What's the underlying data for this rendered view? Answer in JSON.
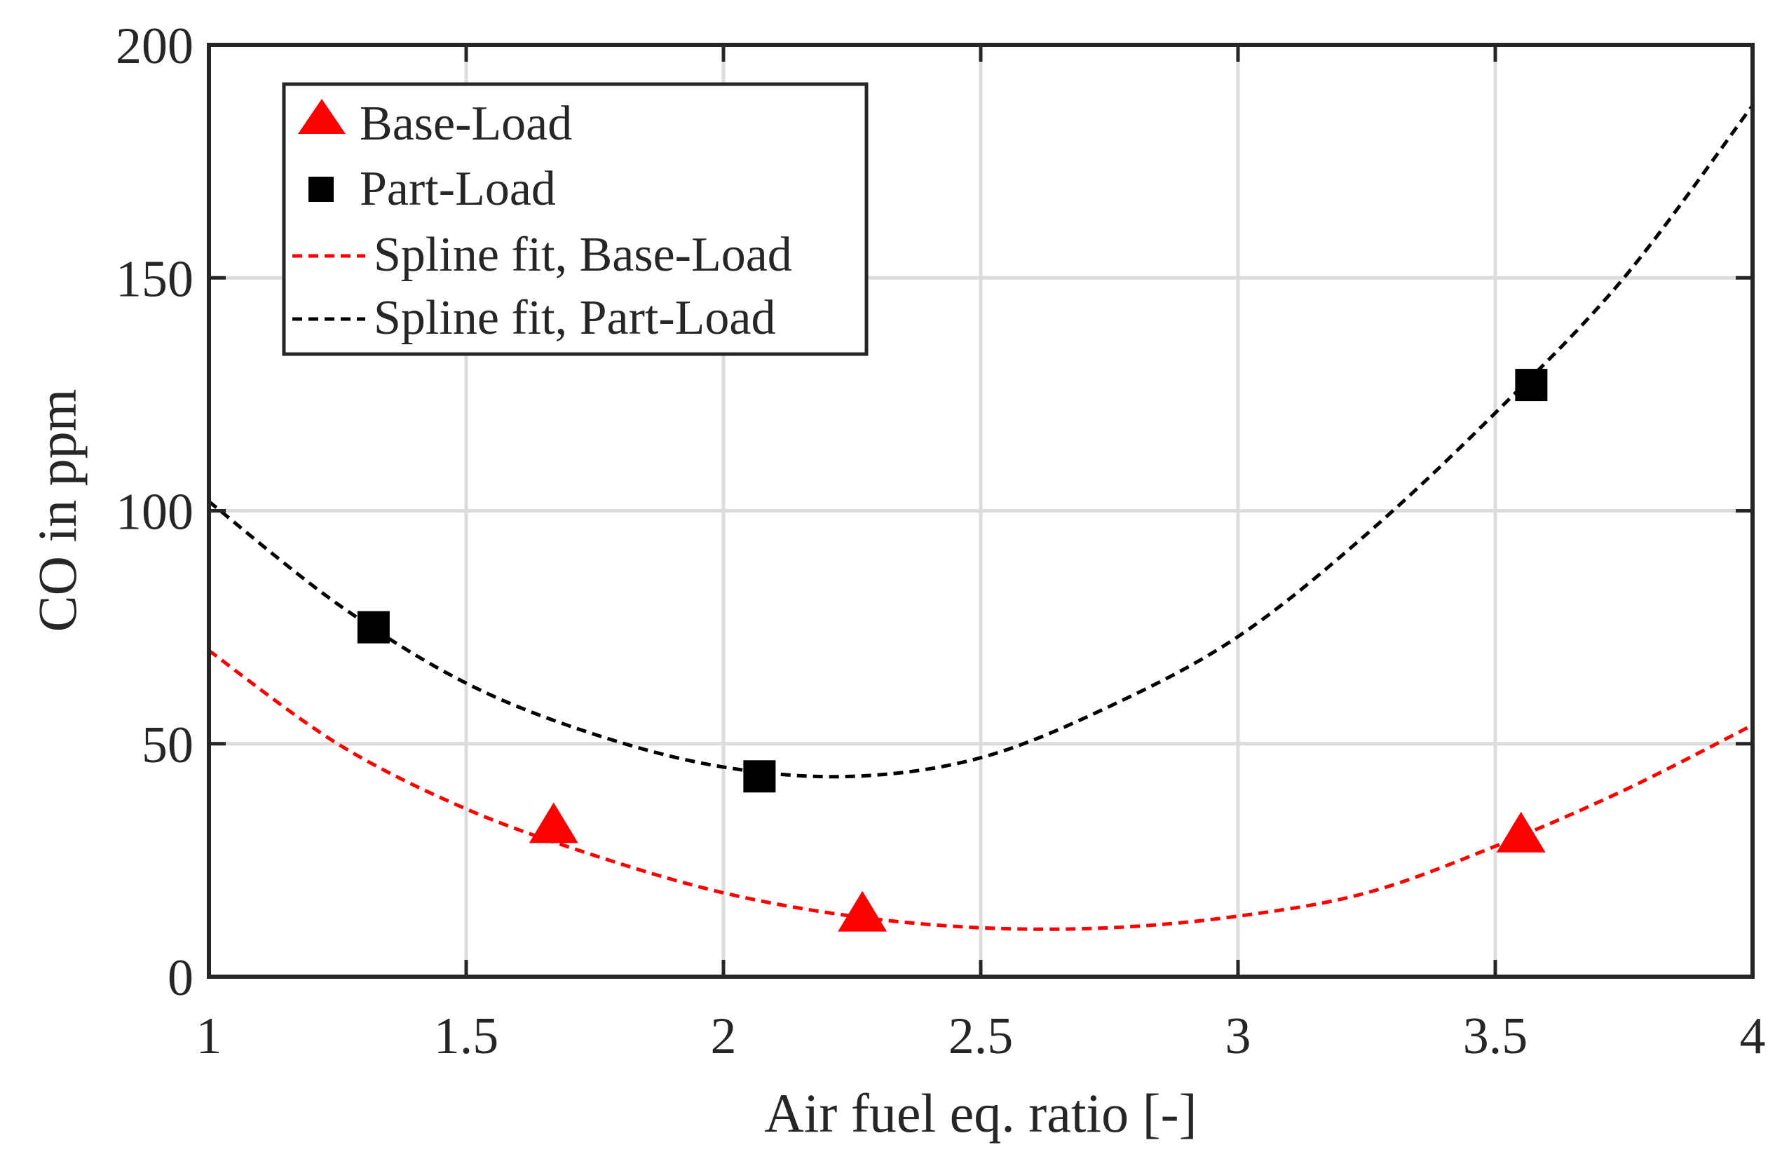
{
  "chart_data": {
    "type": "scatter",
    "title": "",
    "xlabel": "Air fuel eq. ratio [-]",
    "ylabel": "CO in ppm",
    "xlim": [
      1,
      4
    ],
    "ylim": [
      0,
      200
    ],
    "xticks": [
      1,
      1.5,
      2,
      2.5,
      3,
      3.5,
      4
    ],
    "yticks": [
      0,
      50,
      100,
      150,
      200
    ],
    "xtick_labels": [
      "1",
      "1.5",
      "2",
      "2.5",
      "3",
      "3.5",
      "4"
    ],
    "ytick_labels": [
      "0",
      "50",
      "100",
      "150",
      "200"
    ],
    "grid": true,
    "legend_position": "top-left",
    "series": [
      {
        "name": "Base-Load",
        "kind": "markers",
        "marker": "triangle",
        "color": "#ff0000",
        "x": [
          1.67,
          2.27,
          3.55
        ],
        "y": [
          32,
          13,
          30
        ]
      },
      {
        "name": "Part-Load",
        "kind": "markers",
        "marker": "square",
        "color": "#000000",
        "x": [
          1.32,
          2.07,
          3.57
        ],
        "y": [
          75,
          43,
          127
        ]
      },
      {
        "name": "Spline fit, Base-Load",
        "kind": "dashed-line",
        "color": "#ff0000",
        "x": [
          1.0,
          1.25,
          1.5,
          1.75,
          2.0,
          2.25,
          2.5,
          2.75,
          3.0,
          3.25,
          3.5,
          3.75,
          4.0
        ],
        "y": [
          70,
          50,
          36,
          26,
          18,
          13,
          10.5,
          10.5,
          13,
          18,
          28,
          40,
          54
        ]
      },
      {
        "name": "Spline fit, Part-Load",
        "kind": "dashed-line",
        "color": "#000000",
        "x": [
          1.0,
          1.25,
          1.5,
          1.75,
          2.0,
          2.25,
          2.5,
          2.75,
          3.0,
          3.25,
          3.5,
          3.75,
          4.0
        ],
        "y": [
          102,
          80,
          63,
          52,
          45,
          43,
          47,
          58,
          73,
          95,
          121,
          150,
          187
        ]
      }
    ]
  }
}
